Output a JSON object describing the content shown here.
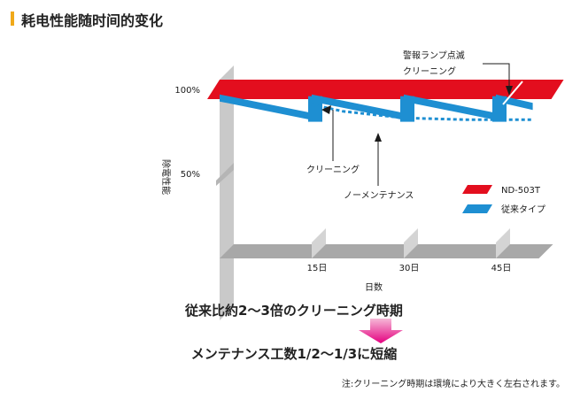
{
  "page_title": "耗电性能随时间的变化",
  "colors": {
    "accent_bar": "#f0a91a",
    "nd503t": "#e30e1e",
    "conventional": "#1e8fd2",
    "arrow": "#e4007f",
    "wall": "#c9c9c9",
    "floor": "#a8a8a8"
  },
  "chart_data": {
    "type": "line",
    "title": "耗电性能随时间的变化",
    "xlabel": "日数",
    "ylabel": "除電性能",
    "x_ticks": [
      "15日",
      "30日",
      "45日"
    ],
    "y_ticks": [
      "100%",
      "50%"
    ],
    "x_range": [
      0,
      52
    ],
    "y_range": [
      0,
      100
    ],
    "legend_position": "right",
    "legend": [
      {
        "name": "ND-503T",
        "color": "#e30e1e"
      },
      {
        "name": "従来タイプ",
        "color": "#1e8fd2"
      }
    ],
    "series": [
      {
        "name": "ND-503T",
        "x": [
          0,
          52
        ],
        "y": [
          100,
          100
        ]
      },
      {
        "name": "従来タイプ",
        "x": [
          0,
          15,
          15,
          30,
          30,
          45,
          45,
          51
        ],
        "y": [
          97,
          86,
          97,
          86,
          97,
          86,
          97,
          92
        ]
      },
      {
        "name": "ノーメンテナンス",
        "style": "dashed",
        "x": [
          15,
          20,
          30,
          40,
          51
        ],
        "y": [
          91,
          87,
          83,
          82,
          82
        ]
      }
    ],
    "annotations": [
      "警報ランプ点滅",
      "クリーニング",
      "クリーニング",
      "ノーメンテナンス"
    ]
  },
  "summary": {
    "line1": "従来比約2～3倍のクリーニング時期",
    "line2": "メンテナンス工数1/2～1/3に短縮"
  },
  "footnote": "注:クリーニング時期は環境により大きく左右されます。"
}
